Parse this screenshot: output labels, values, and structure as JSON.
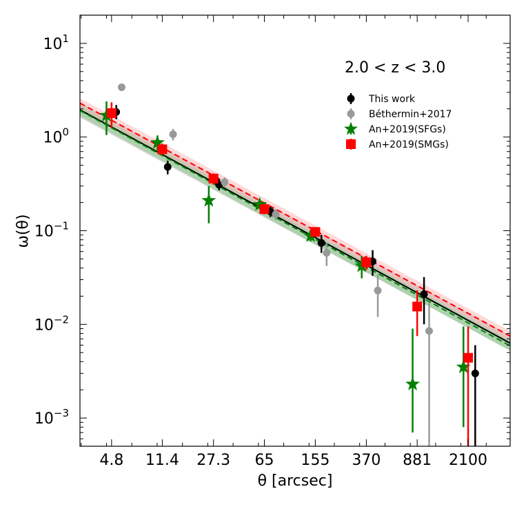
{
  "chart_data": {
    "type": "scatter",
    "title": "",
    "annotation": "2.0 < z < 3.0",
    "xlabel": "θ [arcsec]",
    "ylabel": "ω(θ)",
    "xscale": "log",
    "yscale": "log",
    "xlim": [
      2.8,
      4300
    ],
    "ylim": [
      0.0005,
      20
    ],
    "x_ticks": [
      {
        "value": 4.8,
        "label": "4.8"
      },
      {
        "value": 11.4,
        "label": "11.4"
      },
      {
        "value": 27.3,
        "label": "27.3"
      },
      {
        "value": 65,
        "label": "65"
      },
      {
        "value": 155,
        "label": "155"
      },
      {
        "value": 370,
        "label": "370"
      },
      {
        "value": 881,
        "label": "881"
      },
      {
        "value": 2100,
        "label": "2100"
      }
    ],
    "y_ticks": [
      {
        "exp": -3,
        "label_base": "10",
        "label_exp": "−3"
      },
      {
        "exp": -2,
        "label_base": "10",
        "label_exp": "−2"
      },
      {
        "exp": -1,
        "label_base": "10",
        "label_exp": "−1"
      },
      {
        "exp": 0,
        "label_base": "10",
        "label_exp": "0"
      },
      {
        "exp": 1,
        "label_base": "10",
        "label_exp": "1"
      }
    ],
    "legend_position": "upper-right",
    "colors": {
      "this_work": "#000000",
      "bethermin": "#999999",
      "an_sfg": "#008000",
      "an_smg": "#ff0000"
    },
    "series": [
      {
        "name": "This work",
        "key": "this_work",
        "marker": "circle",
        "points": [
          {
            "x": 5.2,
            "y": 1.85,
            "lo": 1.55,
            "hi": 2.2
          },
          {
            "x": 12.5,
            "y": 0.48,
            "lo": 0.4,
            "hi": 0.56
          },
          {
            "x": 30,
            "y": 0.31,
            "lo": 0.27,
            "hi": 0.36
          },
          {
            "x": 72,
            "y": 0.16,
            "lo": 0.14,
            "hi": 0.18
          },
          {
            "x": 172,
            "y": 0.074,
            "lo": 0.058,
            "hi": 0.09
          },
          {
            "x": 412,
            "y": 0.047,
            "lo": 0.033,
            "hi": 0.062
          },
          {
            "x": 990,
            "y": 0.021,
            "lo": 0.01,
            "hi": 0.032
          },
          {
            "x": 2370,
            "y": 0.003,
            "lo": 0.0005,
            "hi": 0.006
          }
        ]
      },
      {
        "name": "Béthermin+2017",
        "key": "bethermin",
        "marker": "circle",
        "points": [
          {
            "x": 5.7,
            "y": 3.4,
            "lo": 3.1,
            "hi": 3.7
          },
          {
            "x": 13.7,
            "y": 1.07,
            "lo": 0.92,
            "hi": 1.22
          },
          {
            "x": 33,
            "y": 0.33,
            "lo": 0.29,
            "hi": 0.37
          },
          {
            "x": 79,
            "y": 0.15,
            "lo": 0.13,
            "hi": 0.17
          },
          {
            "x": 188,
            "y": 0.058,
            "lo": 0.042,
            "hi": 0.074
          },
          {
            "x": 450,
            "y": 0.023,
            "lo": 0.012,
            "hi": 0.034
          },
          {
            "x": 1080,
            "y": 0.0085,
            "lo": 0.0005,
            "hi": 0.017
          }
        ]
      },
      {
        "name": "An+2019(SFGs)",
        "key": "an_sfg",
        "marker": "star",
        "points": [
          {
            "x": 4.4,
            "y": 1.7,
            "lo": 1.05,
            "hi": 2.4
          },
          {
            "x": 10.5,
            "y": 0.87,
            "lo": 0.72,
            "hi": 1.04
          },
          {
            "x": 25.2,
            "y": 0.21,
            "lo": 0.12,
            "hi": 0.3
          },
          {
            "x": 60,
            "y": 0.19,
            "lo": 0.17,
            "hi": 0.22
          },
          {
            "x": 143,
            "y": 0.088,
            "lo": 0.077,
            "hi": 0.1
          },
          {
            "x": 342,
            "y": 0.042,
            "lo": 0.031,
            "hi": 0.054
          },
          {
            "x": 815,
            "y": 0.0023,
            "lo": 0.0007,
            "hi": 0.009
          },
          {
            "x": 1940,
            "y": 0.0035,
            "lo": 0.0008,
            "hi": 0.0095
          }
        ]
      },
      {
        "name": "An+2019(SMGs)",
        "key": "an_smg",
        "marker": "square",
        "points": [
          {
            "x": 4.8,
            "y": 1.8,
            "lo": 1.25,
            "hi": 2.35
          },
          {
            "x": 11.4,
            "y": 0.74,
            "lo": 0.64,
            "hi": 0.85
          },
          {
            "x": 27.3,
            "y": 0.36,
            "lo": 0.31,
            "hi": 0.41
          },
          {
            "x": 65,
            "y": 0.17,
            "lo": 0.15,
            "hi": 0.19
          },
          {
            "x": 155,
            "y": 0.097,
            "lo": 0.087,
            "hi": 0.108
          },
          {
            "x": 370,
            "y": 0.046,
            "lo": 0.038,
            "hi": 0.054
          },
          {
            "x": 881,
            "y": 0.0155,
            "lo": 0.0075,
            "hi": 0.023
          },
          {
            "x": 2100,
            "y": 0.0044,
            "lo": 0.0005,
            "hi": 0.0095
          }
        ]
      }
    ],
    "fits": [
      {
        "name": "This work fit",
        "key": "this_work",
        "dash": false,
        "x0": 2.8,
        "y0": 1.95,
        "x1": 4300,
        "y1": 0.0063,
        "band_factor": 1.2,
        "band_color": "#999999"
      },
      {
        "name": "An+2019(SFGs) fit",
        "key": "an_sfg",
        "dash": true,
        "x0": 2.8,
        "y0": 1.92,
        "x1": 4300,
        "y1": 0.0059,
        "band_factor": 1.13,
        "band_color": "#7fd17f"
      },
      {
        "name": "An+2019(SMGs) fit",
        "key": "an_smg",
        "dash": true,
        "x0": 2.8,
        "y0": 2.3,
        "x1": 4300,
        "y1": 0.0075,
        "band_factor": 1.13,
        "band_color": "#ffaaaa"
      }
    ]
  }
}
